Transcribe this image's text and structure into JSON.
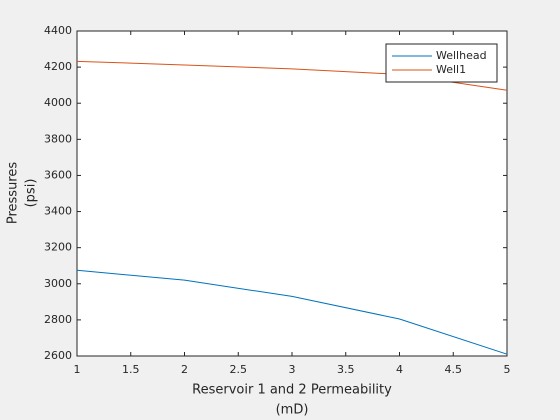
{
  "chart_data": {
    "type": "line",
    "x": [
      1,
      2,
      3,
      4,
      5
    ],
    "series": [
      {
        "name": "Wellhead",
        "color": "#0072bd",
        "values": [
          3075,
          3020,
          2930,
          2805,
          2610
        ]
      },
      {
        "name": "Well1",
        "color": "#d95319",
        "values": [
          4232,
          4212,
          4190,
          4160,
          4072
        ]
      }
    ],
    "xlabel": [
      "Reservoir 1 and 2 Permeability",
      "(mD)"
    ],
    "ylabel": [
      "Pressures",
      "(psi)"
    ],
    "xlim": [
      1,
      5
    ],
    "xticks": [
      1,
      1.5,
      2,
      2.5,
      3,
      3.5,
      4,
      4.5,
      5
    ],
    "ylim": [
      2600,
      4400
    ],
    "yticks": [
      2600,
      2800,
      3000,
      3200,
      3400,
      3600,
      3800,
      4000,
      4200,
      4400
    ],
    "grid": false,
    "legend": "northeast"
  }
}
